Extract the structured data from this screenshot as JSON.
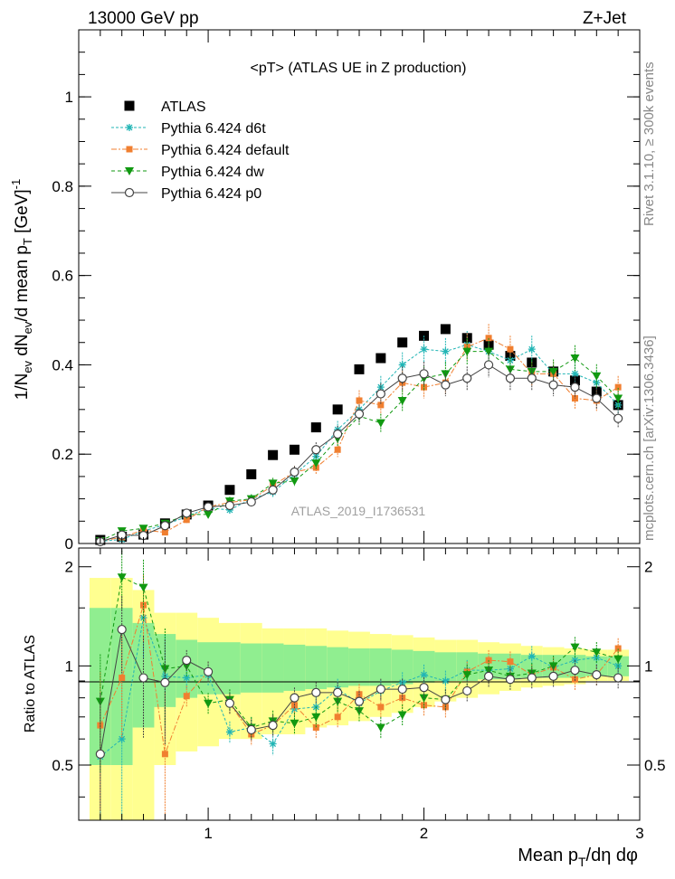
{
  "header": {
    "left": "13000 GeV pp",
    "right": "Z+Jet"
  },
  "side_text": {
    "top": "Rivet 3.1.10, ≥ 300k events",
    "bottom": "mcplots.cern.ch [arXiv:1306.3436]"
  },
  "plot_title": "<pT> (ATLAS UE in Z production)",
  "analysis_label": "ATLAS_2019_I1736531",
  "ylabel_main": "1/N_ev dN_ev/d mean p_T [GeV]^-1",
  "ylabel_ratio": "Ratio to ATLAS",
  "xlabel": "Mean p_T/dη dφ",
  "colors": {
    "atlas": "#000000",
    "d6t": "#22b5b5",
    "default": "#f07f30",
    "dw": "#119911",
    "p0": "#444444",
    "band_inner": "#90ee90",
    "band_outer": "#ffff90"
  },
  "legend": [
    {
      "key": "atlas",
      "label": "ATLAS",
      "marker": "square-icon"
    },
    {
      "key": "d6t",
      "label": "Pythia 6.424 d6t",
      "marker": "asterisk-icon"
    },
    {
      "key": "default",
      "label": "Pythia 6.424 default",
      "marker": "square-icon"
    },
    {
      "key": "dw",
      "label": "Pythia 6.424 dw",
      "marker": "down-triangle-icon"
    },
    {
      "key": "p0",
      "label": "Pythia 6.424 p0",
      "marker": "open-circle-icon"
    }
  ],
  "chart_data": [
    {
      "type": "scatter",
      "panel": "main",
      "xlim": [
        0.4,
        3.0
      ],
      "ylim": [
        0,
        1.15
      ],
      "x_ticks": [
        1,
        2,
        3
      ],
      "y_ticks": [
        0,
        0.2,
        0.4,
        0.6,
        0.8,
        1
      ],
      "y_tick_labels": [
        "0",
        "0.2",
        "0.4",
        "0.6",
        "0.8",
        "1"
      ],
      "x": [
        0.5,
        0.6,
        0.7,
        0.8,
        0.9,
        1.0,
        1.1,
        1.2,
        1.3,
        1.4,
        1.5,
        1.6,
        1.7,
        1.8,
        1.9,
        2.0,
        2.1,
        2.2,
        2.3,
        2.4,
        2.5,
        2.6,
        2.7,
        2.8,
        2.9
      ],
      "series": [
        {
          "key": "atlas",
          "name": "ATLAS",
          "values": [
            0.008,
            0.015,
            0.02,
            0.045,
            0.065,
            0.085,
            0.12,
            0.155,
            0.198,
            0.21,
            0.26,
            0.3,
            0.39,
            0.415,
            0.45,
            0.465,
            0.48,
            0.46,
            0.445,
            0.42,
            0.405,
            0.385,
            0.365,
            0.34,
            0.31
          ]
        },
        {
          "key": "d6t",
          "name": "Pythia 6.424 d6t",
          "values": [
            0.005,
            0.009,
            0.028,
            0.042,
            0.06,
            0.08,
            0.075,
            0.1,
            0.115,
            0.155,
            0.195,
            0.255,
            0.3,
            0.35,
            0.4,
            0.435,
            0.43,
            0.445,
            0.43,
            0.41,
            0.435,
            0.38,
            0.38,
            0.36,
            0.31
          ]
        },
        {
          "key": "default",
          "name": "Pythia 6.424 default",
          "values": [
            0.005,
            0.014,
            0.03,
            0.025,
            0.053,
            0.082,
            0.092,
            0.098,
            0.13,
            0.16,
            0.17,
            0.21,
            0.32,
            0.31,
            0.36,
            0.35,
            0.36,
            0.44,
            0.46,
            0.435,
            0.38,
            0.38,
            0.325,
            0.32,
            0.35
          ]
        },
        {
          "key": "dw",
          "name": "Pythia 6.424 dw",
          "values": [
            0.006,
            0.028,
            0.034,
            0.045,
            0.065,
            0.065,
            0.095,
            0.1,
            0.135,
            0.14,
            0.18,
            0.235,
            0.285,
            0.27,
            0.32,
            0.37,
            0.38,
            0.43,
            0.43,
            0.39,
            0.385,
            0.385,
            0.415,
            0.375,
            0.325
          ]
        },
        {
          "key": "p0",
          "name": "Pythia 6.424 p0",
          "values": [
            0.004,
            0.019,
            0.018,
            0.04,
            0.068,
            0.082,
            0.085,
            0.093,
            0.12,
            0.16,
            0.21,
            0.245,
            0.29,
            0.335,
            0.37,
            0.38,
            0.355,
            0.37,
            0.4,
            0.37,
            0.37,
            0.355,
            0.35,
            0.325,
            0.28
          ]
        }
      ]
    },
    {
      "type": "scatter",
      "panel": "ratio",
      "xlim": [
        0.4,
        3.0
      ],
      "ylim": [
        0.34,
        2.28
      ],
      "x_ticks": [
        1,
        2,
        3
      ],
      "y_ticks": [
        0.5,
        1,
        2
      ],
      "y_tick_labels": [
        "0.5",
        "1",
        "2"
      ],
      "x": [
        0.5,
        0.6,
        0.7,
        0.8,
        0.9,
        1.0,
        1.1,
        1.2,
        1.3,
        1.4,
        1.5,
        1.6,
        1.7,
        1.8,
        1.9,
        2.0,
        2.1,
        2.2,
        2.3,
        2.4,
        2.5,
        2.6,
        2.7,
        2.8,
        2.9
      ],
      "band_inner": [
        0.5,
        0.5,
        0.65,
        0.75,
        0.8,
        0.82,
        0.82,
        0.83,
        0.83,
        0.84,
        0.85,
        0.86,
        0.87,
        0.87,
        0.88,
        0.89,
        0.9,
        0.9,
        0.91,
        0.91,
        0.92,
        0.92,
        0.92,
        0.93,
        0.93
      ],
      "band_inner_hi": [
        1.5,
        1.5,
        1.35,
        1.25,
        1.2,
        1.18,
        1.18,
        1.17,
        1.17,
        1.16,
        1.15,
        1.14,
        1.13,
        1.13,
        1.12,
        1.11,
        1.1,
        1.1,
        1.09,
        1.09,
        1.08,
        1.08,
        1.08,
        1.07,
        1.07
      ],
      "band_outer": [
        0.3,
        0.3,
        0.3,
        0.5,
        0.55,
        0.57,
        0.6,
        0.6,
        0.62,
        0.62,
        0.65,
        0.66,
        0.68,
        0.7,
        0.72,
        0.75,
        0.78,
        0.8,
        0.82,
        0.84,
        0.86,
        0.87,
        0.88,
        0.9,
        0.9
      ],
      "band_outer_hi": [
        1.85,
        1.85,
        1.7,
        1.45,
        1.45,
        1.4,
        1.35,
        1.35,
        1.3,
        1.3,
        1.3,
        1.28,
        1.27,
        1.25,
        1.24,
        1.22,
        1.2,
        1.2,
        1.18,
        1.17,
        1.15,
        1.14,
        1.13,
        1.12,
        1.12
      ],
      "series": [
        {
          "key": "d6t",
          "name": "Pythia 6.424 d6t",
          "values": [
            0.53,
            0.6,
            1.4,
            0.93,
            0.92,
            0.94,
            0.63,
            0.65,
            0.58,
            0.74,
            0.75,
            0.85,
            0.77,
            0.84,
            0.89,
            0.94,
            0.9,
            0.97,
            0.97,
            0.98,
            1.07,
            0.99,
            1.04,
            1.06,
            1.0
          ]
        },
        {
          "key": "default",
          "name": "Pythia 6.424 default",
          "values": [
            0.66,
            0.92,
            1.53,
            0.54,
            0.81,
            0.96,
            0.77,
            0.62,
            0.66,
            0.76,
            0.65,
            0.7,
            0.82,
            0.75,
            0.8,
            0.76,
            0.75,
            0.96,
            1.04,
            1.03,
            0.94,
            0.99,
            0.91,
            0.94,
            1.13
          ]
        },
        {
          "key": "dw",
          "name": "Pythia 6.424 dw",
          "values": [
            0.78,
            1.86,
            1.73,
            0.98,
            1.0,
            0.77,
            0.79,
            0.65,
            0.68,
            0.67,
            0.7,
            0.78,
            0.73,
            0.65,
            0.71,
            0.8,
            0.79,
            0.94,
            0.97,
            0.93,
            0.95,
            1.0,
            1.14,
            1.1,
            1.05
          ]
        },
        {
          "key": "p0",
          "name": "Pythia 6.424 p0",
          "values": [
            0.54,
            1.29,
            0.92,
            0.89,
            1.04,
            0.96,
            0.77,
            0.64,
            0.66,
            0.8,
            0.83,
            0.83,
            0.78,
            0.85,
            0.85,
            0.86,
            0.79,
            0.84,
            0.93,
            0.91,
            0.92,
            0.93,
            0.97,
            0.94,
            0.92
          ]
        }
      ]
    }
  ]
}
